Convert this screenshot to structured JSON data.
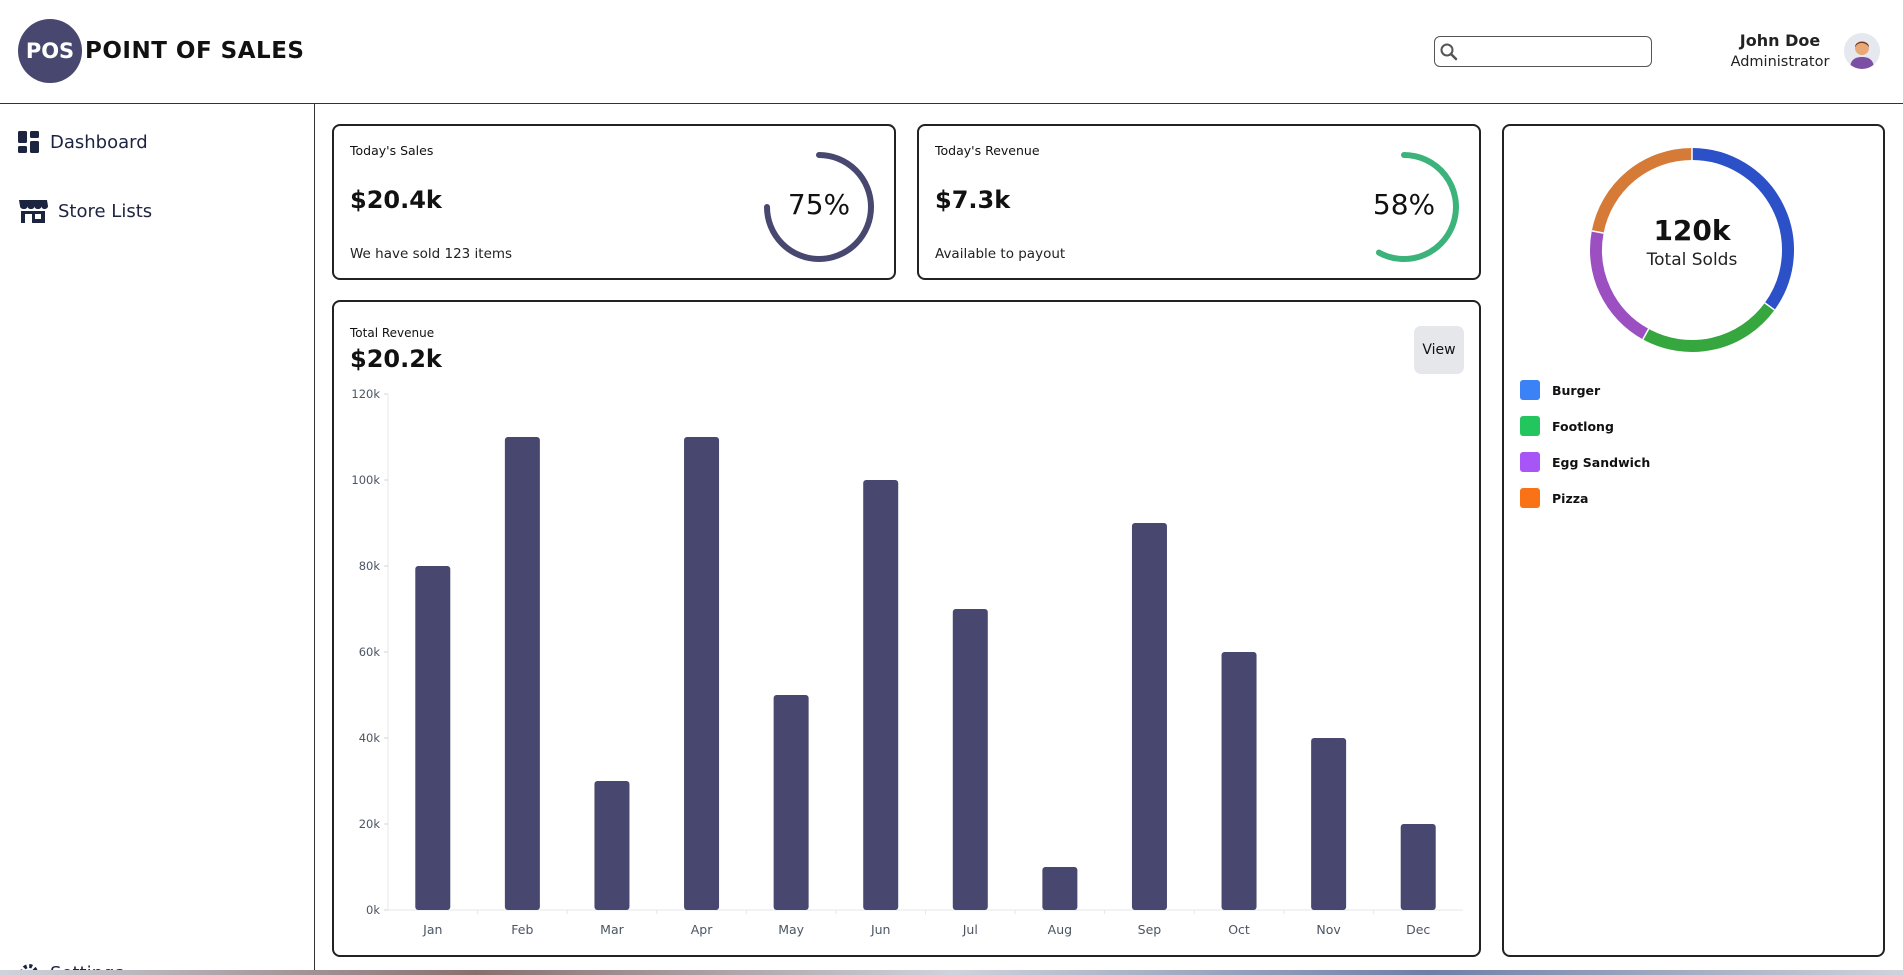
{
  "header": {
    "logo_badge": "POS",
    "logo_text": "POINT OF SALES",
    "search": {
      "placeholder": "",
      "value": ""
    },
    "user": {
      "name": "John Doe",
      "role": "Administrator"
    }
  },
  "sidebar": {
    "items": [
      {
        "label": "Dashboard",
        "icon": "dashboard-icon"
      },
      {
        "label": "Store Lists",
        "icon": "store-icon"
      },
      {
        "label": "Settings",
        "icon": "gear-icon"
      }
    ]
  },
  "cards": {
    "sales": {
      "title": "Today's Sales",
      "value": "$20.4k",
      "subtitle": "We have sold 123 items",
      "percent_label": "75%",
      "percent": 75,
      "color": "#47476f"
    },
    "revenue": {
      "title": "Today's Revenue",
      "value": "$7.3k",
      "subtitle": "Available to payout",
      "percent_label": "58%",
      "percent": 58,
      "color": "#3bb37a"
    }
  },
  "revenue_chart": {
    "title": "Total Revenue",
    "value": "$20.2k",
    "view_label": "View"
  },
  "chart_data": [
    {
      "type": "bar",
      "categories": [
        "Jan",
        "Feb",
        "Mar",
        "Apr",
        "May",
        "Jun",
        "Jul",
        "Aug",
        "Sep",
        "Oct",
        "Nov",
        "Dec"
      ],
      "values": [
        80000,
        110000,
        30000,
        110000,
        50000,
        100000,
        70000,
        10000,
        90000,
        60000,
        40000,
        20000
      ],
      "ylim": [
        0,
        120000
      ],
      "yticks": [
        0,
        20000,
        40000,
        60000,
        80000,
        100000,
        120000
      ],
      "ytick_labels": [
        "0k",
        "20k",
        "40k",
        "60k",
        "80k",
        "100k",
        "120k"
      ],
      "bar_color": "#47476f",
      "grid": false
    },
    {
      "type": "pie",
      "center_value": "120k",
      "center_label": "Total Solds",
      "labels": [
        "Burger",
        "Footlong",
        "Egg Sandwich",
        "Pizza"
      ],
      "values": [
        35,
        23,
        20,
        22
      ],
      "ring_colors": [
        "#2b50c8",
        "#36a63e",
        "#9b4fc0",
        "#d67a37"
      ],
      "legend_colors": [
        "#3b82f6",
        "#22c55e",
        "#a855f7",
        "#f97316"
      ],
      "legend": "below"
    }
  ]
}
